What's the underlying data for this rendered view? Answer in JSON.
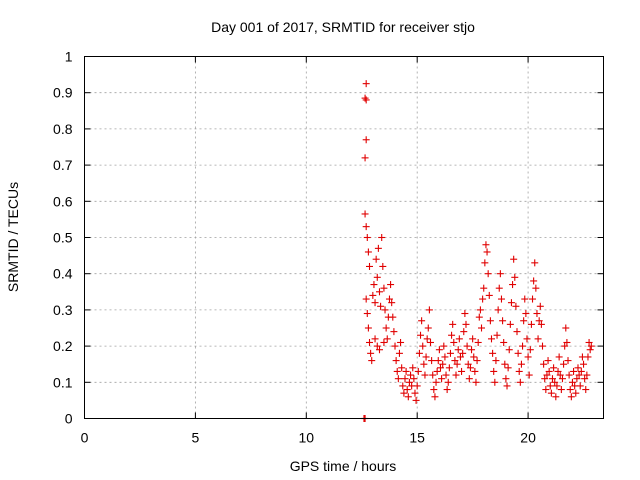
{
  "chart_data": {
    "type": "scatter",
    "title": "Day 001 of 2017, SRMTID for receiver stjo",
    "xlabel": "GPS time / hours",
    "ylabel": "SRMTID / TECUs",
    "xlim": [
      0,
      23.4
    ],
    "ylim": [
      0,
      1
    ],
    "xticks": [
      0,
      5,
      10,
      15,
      20
    ],
    "yticks": [
      0,
      0.1,
      0.2,
      0.3,
      0.4,
      0.5,
      0.6,
      0.7,
      0.8,
      0.9,
      1
    ],
    "grid": true,
    "marker": "+",
    "series": [
      {
        "name": "SRMTID",
        "color": "#e00000",
        "points": [
          [
            12.6,
            0.0
          ],
          [
            12.65,
            0.0
          ],
          [
            12.7,
            0.925
          ],
          [
            12.65,
            0.885
          ],
          [
            12.7,
            0.88
          ],
          [
            12.7,
            0.77
          ],
          [
            12.65,
            0.72
          ],
          [
            12.65,
            0.565
          ],
          [
            12.7,
            0.53
          ],
          [
            12.75,
            0.5
          ],
          [
            12.8,
            0.46
          ],
          [
            12.85,
            0.42
          ],
          [
            12.7,
            0.33
          ],
          [
            12.75,
            0.29
          ],
          [
            12.8,
            0.25
          ],
          [
            12.85,
            0.21
          ],
          [
            12.9,
            0.18
          ],
          [
            12.95,
            0.16
          ],
          [
            13.0,
            0.34
          ],
          [
            13.05,
            0.37
          ],
          [
            13.1,
            0.32
          ],
          [
            13.15,
            0.44
          ],
          [
            13.2,
            0.39
          ],
          [
            13.25,
            0.47
          ],
          [
            13.3,
            0.35
          ],
          [
            13.35,
            0.31
          ],
          [
            13.4,
            0.5
          ],
          [
            13.45,
            0.42
          ],
          [
            13.5,
            0.36
          ],
          [
            13.55,
            0.3
          ],
          [
            13.6,
            0.25
          ],
          [
            13.65,
            0.22
          ],
          [
            13.7,
            0.28
          ],
          [
            13.75,
            0.33
          ],
          [
            13.8,
            0.37
          ],
          [
            13.85,
            0.32
          ],
          [
            13.9,
            0.28
          ],
          [
            13.95,
            0.24
          ],
          [
            13.1,
            0.22
          ],
          [
            13.2,
            0.2
          ],
          [
            13.3,
            0.19
          ],
          [
            13.5,
            0.21
          ],
          [
            14.0,
            0.2
          ],
          [
            14.05,
            0.16
          ],
          [
            14.1,
            0.13
          ],
          [
            14.15,
            0.11
          ],
          [
            14.2,
            0.18
          ],
          [
            14.25,
            0.21
          ],
          [
            14.3,
            0.14
          ],
          [
            14.35,
            0.09
          ],
          [
            14.4,
            0.07
          ],
          [
            14.45,
            0.11
          ],
          [
            14.5,
            0.13
          ],
          [
            14.55,
            0.08
          ],
          [
            14.6,
            0.06
          ],
          [
            14.65,
            0.1
          ],
          [
            14.7,
            0.12
          ],
          [
            14.75,
            0.09
          ],
          [
            14.8,
            0.14
          ],
          [
            14.85,
            0.11
          ],
          [
            14.9,
            0.07
          ],
          [
            14.95,
            0.05
          ],
          [
            15.0,
            0.09
          ],
          [
            15.05,
            0.13
          ],
          [
            15.1,
            0.18
          ],
          [
            15.15,
            0.23
          ],
          [
            15.2,
            0.27
          ],
          [
            15.25,
            0.2
          ],
          [
            15.3,
            0.15
          ],
          [
            15.35,
            0.12
          ],
          [
            15.4,
            0.17
          ],
          [
            15.45,
            0.22
          ],
          [
            15.5,
            0.25
          ],
          [
            15.55,
            0.3
          ],
          [
            15.6,
            0.21
          ],
          [
            15.65,
            0.16
          ],
          [
            15.7,
            0.12
          ],
          [
            15.75,
            0.08
          ],
          [
            15.8,
            0.06
          ],
          [
            15.85,
            0.1
          ],
          [
            15.9,
            0.13
          ],
          [
            15.95,
            0.16
          ],
          [
            16.0,
            0.19
          ],
          [
            16.05,
            0.14
          ],
          [
            16.1,
            0.11
          ],
          [
            16.15,
            0.15
          ],
          [
            16.2,
            0.2
          ],
          [
            16.25,
            0.17
          ],
          [
            16.3,
            0.12
          ],
          [
            16.35,
            0.08
          ],
          [
            16.4,
            0.1
          ],
          [
            16.45,
            0.14
          ],
          [
            16.5,
            0.18
          ],
          [
            16.55,
            0.23
          ],
          [
            16.6,
            0.26
          ],
          [
            16.65,
            0.21
          ],
          [
            16.7,
            0.16
          ],
          [
            16.75,
            0.12
          ],
          [
            16.8,
            0.15
          ],
          [
            16.85,
            0.19
          ],
          [
            16.9,
            0.22
          ],
          [
            16.95,
            0.17
          ],
          [
            17.0,
            0.13
          ],
          [
            17.05,
            0.18
          ],
          [
            17.1,
            0.24
          ],
          [
            17.15,
            0.29
          ],
          [
            17.2,
            0.26
          ],
          [
            17.25,
            0.2
          ],
          [
            17.3,
            0.15
          ],
          [
            17.35,
            0.11
          ],
          [
            17.4,
            0.14
          ],
          [
            17.45,
            0.19
          ],
          [
            17.5,
            0.22
          ],
          [
            17.55,
            0.17
          ],
          [
            17.6,
            0.13
          ],
          [
            17.65,
            0.1
          ],
          [
            17.7,
            0.16
          ],
          [
            17.75,
            0.21
          ],
          [
            17.8,
            0.28
          ],
          [
            17.85,
            0.3
          ],
          [
            17.9,
            0.25
          ],
          [
            17.95,
            0.33
          ],
          [
            18.0,
            0.36
          ],
          [
            18.05,
            0.43
          ],
          [
            18.1,
            0.48
          ],
          [
            18.15,
            0.46
          ],
          [
            18.2,
            0.4
          ],
          [
            18.25,
            0.34
          ],
          [
            18.3,
            0.27
          ],
          [
            18.35,
            0.22
          ],
          [
            18.4,
            0.18
          ],
          [
            18.45,
            0.13
          ],
          [
            18.5,
            0.1
          ],
          [
            18.55,
            0.16
          ],
          [
            18.6,
            0.23
          ],
          [
            18.65,
            0.3
          ],
          [
            18.7,
            0.36
          ],
          [
            18.75,
            0.4
          ],
          [
            18.8,
            0.33
          ],
          [
            18.85,
            0.27
          ],
          [
            18.9,
            0.21
          ],
          [
            18.95,
            0.15
          ],
          [
            19.0,
            0.11
          ],
          [
            19.05,
            0.09
          ],
          [
            19.1,
            0.14
          ],
          [
            19.15,
            0.19
          ],
          [
            19.2,
            0.26
          ],
          [
            19.25,
            0.32
          ],
          [
            19.3,
            0.37
          ],
          [
            19.35,
            0.44
          ],
          [
            19.4,
            0.39
          ],
          [
            19.45,
            0.31
          ],
          [
            19.5,
            0.24
          ],
          [
            19.55,
            0.18
          ],
          [
            19.6,
            0.13
          ],
          [
            19.65,
            0.1
          ],
          [
            19.7,
            0.15
          ],
          [
            19.75,
            0.2
          ],
          [
            19.8,
            0.27
          ],
          [
            19.85,
            0.33
          ],
          [
            19.9,
            0.29
          ],
          [
            19.95,
            0.22
          ],
          [
            20.0,
            0.17
          ],
          [
            20.05,
            0.12
          ],
          [
            20.1,
            0.19
          ],
          [
            20.15,
            0.26
          ],
          [
            20.2,
            0.33
          ],
          [
            20.25,
            0.38
          ],
          [
            20.3,
            0.43
          ],
          [
            20.35,
            0.36
          ],
          [
            20.4,
            0.29
          ],
          [
            20.45,
            0.22
          ],
          [
            20.5,
            0.27
          ],
          [
            20.55,
            0.31
          ],
          [
            20.6,
            0.26
          ],
          [
            20.65,
            0.2
          ],
          [
            20.7,
            0.15
          ],
          [
            20.75,
            0.11
          ],
          [
            20.8,
            0.08
          ],
          [
            20.85,
            0.12
          ],
          [
            20.9,
            0.16
          ],
          [
            20.95,
            0.13
          ],
          [
            21.0,
            0.09
          ],
          [
            21.05,
            0.07
          ],
          [
            21.1,
            0.11
          ],
          [
            21.15,
            0.14
          ],
          [
            21.2,
            0.1
          ],
          [
            21.25,
            0.06
          ],
          [
            21.3,
            0.09
          ],
          [
            21.35,
            0.13
          ],
          [
            21.4,
            0.17
          ],
          [
            21.45,
            0.12
          ],
          [
            21.5,
            0.08
          ],
          [
            21.55,
            0.11
          ],
          [
            21.6,
            0.15
          ],
          [
            21.65,
            0.2
          ],
          [
            21.7,
            0.25
          ],
          [
            21.75,
            0.21
          ],
          [
            21.8,
            0.16
          ],
          [
            21.85,
            0.12
          ],
          [
            21.9,
            0.08
          ],
          [
            21.95,
            0.06
          ],
          [
            22.0,
            0.1
          ],
          [
            22.05,
            0.13
          ],
          [
            22.1,
            0.09
          ],
          [
            22.15,
            0.07
          ],
          [
            22.2,
            0.11
          ],
          [
            22.25,
            0.14
          ],
          [
            22.3,
            0.12
          ],
          [
            22.35,
            0.09
          ],
          [
            22.4,
            0.13
          ],
          [
            22.45,
            0.17
          ],
          [
            22.5,
            0.15
          ],
          [
            22.55,
            0.11
          ],
          [
            22.6,
            0.08
          ],
          [
            22.65,
            0.12
          ],
          [
            22.7,
            0.17
          ],
          [
            22.75,
            0.21
          ],
          [
            22.8,
            0.19
          ],
          [
            22.85,
            0.2
          ]
        ]
      }
    ]
  }
}
